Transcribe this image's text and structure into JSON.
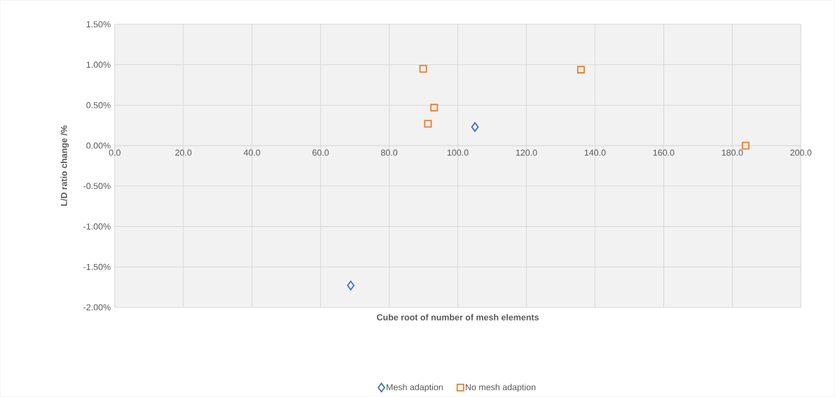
{
  "chart_data": {
    "type": "scatter",
    "xlabel": "Cube root of number of mesh elements",
    "ylabel": "L/D ratio change /%",
    "xlim": [
      0,
      200
    ],
    "xticks": [
      {
        "value": 0,
        "label": "0.0"
      },
      {
        "value": 20,
        "label": "20.0"
      },
      {
        "value": 40,
        "label": "40.0"
      },
      {
        "value": 60,
        "label": "60.0"
      },
      {
        "value": 80,
        "label": "80.0"
      },
      {
        "value": 100,
        "label": "100.0"
      },
      {
        "value": 120,
        "label": "120.0"
      },
      {
        "value": 140,
        "label": "140.0"
      },
      {
        "value": 160,
        "label": "160.0"
      },
      {
        "value": 180,
        "label": "180.0"
      },
      {
        "value": 200,
        "label": "200.0"
      }
    ],
    "ylim": [
      -2,
      1.5
    ],
    "yticks": [
      {
        "value": -2,
        "label": "-2.00%"
      },
      {
        "value": -1.5,
        "label": "-1.50%"
      },
      {
        "value": -1,
        "label": "-1.00%"
      },
      {
        "value": -0.5,
        "label": "-0.50%"
      },
      {
        "value": 0,
        "label": "0.00%"
      },
      {
        "value": 0.5,
        "label": "0.50%"
      },
      {
        "value": 1,
        "label": "1.00%"
      },
      {
        "value": 1.5,
        "label": "1.50%"
      }
    ],
    "grid": true,
    "legend": "bottom",
    "series": [
      {
        "name": "Mesh adaption",
        "color": "#4472c4",
        "marker": "diamond",
        "x": [
          68.8,
          105.0
        ],
        "values": [
          -1.73,
          0.23
        ]
      },
      {
        "name": "No mesh adaption",
        "color": "#ed7d31",
        "marker": "square",
        "x": [
          89.9,
          93.1,
          91.3,
          135.9,
          183.9
        ],
        "values": [
          0.95,
          0.47,
          0.27,
          0.94,
          0.0
        ]
      }
    ]
  }
}
